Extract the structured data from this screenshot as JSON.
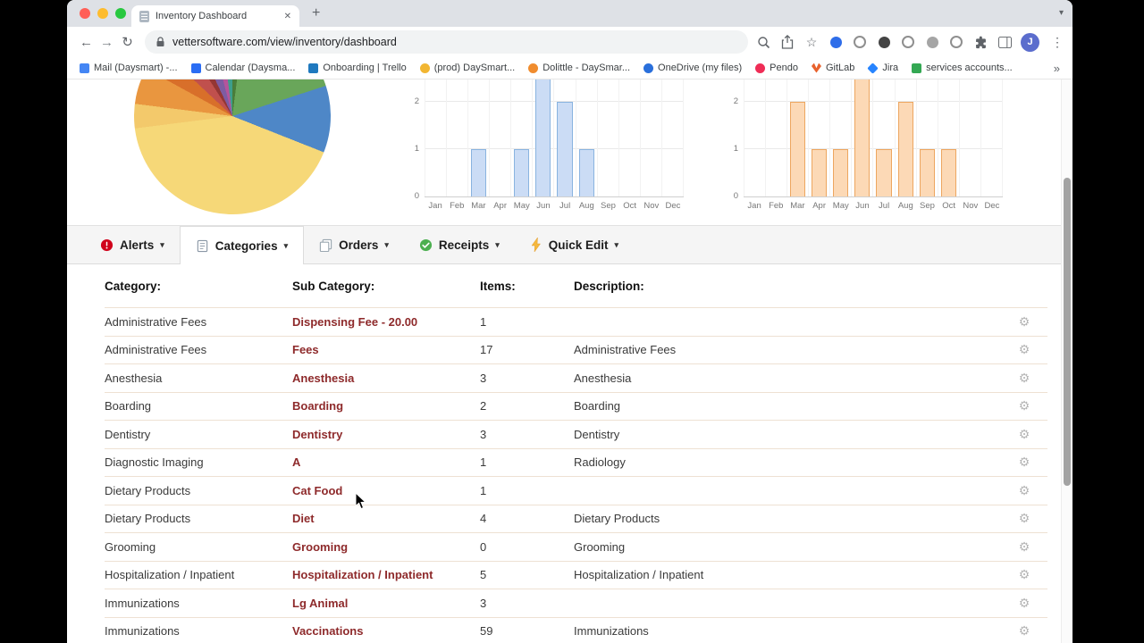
{
  "browser": {
    "tab_title": "Inventory Dashboard",
    "url": "vettersoftware.com/view/inventory/dashboard",
    "profile_initial": "J",
    "bookmarks": [
      {
        "label": "Mail (Daysmart) -...",
        "icon": "mail-icon",
        "color": "#4486f4",
        "shape": "square"
      },
      {
        "label": "Calendar (Daysma...",
        "icon": "calendar-icon",
        "color": "#2a6df4",
        "shape": "square"
      },
      {
        "label": "Onboarding | Trello",
        "icon": "trello-icon",
        "color": "#1f79bf",
        "shape": "square"
      },
      {
        "label": "(prod) DaySmart...",
        "icon": "daysmart-icon",
        "color": "#f2b632",
        "shape": "circle"
      },
      {
        "label": "Dolittle - DaySmar...",
        "icon": "dolittle-icon",
        "color": "#f08c2e",
        "shape": "circle"
      },
      {
        "label": "OneDrive (my files)",
        "icon": "onedrive-icon",
        "color": "#2a6fdb",
        "shape": "circle"
      },
      {
        "label": "Pendo",
        "icon": "pendo-icon",
        "color": "#ef2d56",
        "shape": "circle"
      },
      {
        "label": "GitLab",
        "icon": "gitlab-icon",
        "color": "#e8622d",
        "shape": "triangle"
      },
      {
        "label": "Jira",
        "icon": "jira-icon",
        "color": "#2684ff",
        "shape": "diamond"
      },
      {
        "label": "services accounts...",
        "icon": "sheets-icon",
        "color": "#34a853",
        "shape": "square"
      }
    ],
    "extensions": [
      {
        "icon": "record-dot-icon",
        "style": "filled",
        "color": "#2e6de9"
      },
      {
        "icon": "extension-icon-1",
        "style": "ring",
        "color": "#8f8f8f"
      },
      {
        "icon": "extension-icon-2",
        "style": "filled",
        "color": "#444444"
      },
      {
        "icon": "extension-icon-3",
        "style": "ring",
        "color": "#8f8f8f"
      },
      {
        "icon": "extension-icon-4",
        "style": "filled",
        "color": "#a5a5a5"
      },
      {
        "icon": "extension-icon-5",
        "style": "ring",
        "color": "#8f8f8f"
      }
    ]
  },
  "glyphs": {
    "close": "✕",
    "plus": "+",
    "chevron_down": "▾",
    "back": "←",
    "forward": "→",
    "reload": "↻",
    "star": "☆",
    "kebab": "⋮",
    "overflow": "»",
    "gear": "⚙"
  },
  "nav_tabs": [
    {
      "label": "Alerts",
      "icon": "alert-icon",
      "active": false
    },
    {
      "label": "Categories",
      "icon": "categories-icon",
      "active": true
    },
    {
      "label": "Orders",
      "icon": "orders-icon",
      "active": false
    },
    {
      "label": "Receipts",
      "icon": "receipts-icon",
      "active": false
    },
    {
      "label": "Quick Edit",
      "icon": "quick-edit-icon",
      "active": false
    }
  ],
  "table": {
    "headers": [
      "Category:",
      "Sub Category:",
      "Items:",
      "Description:"
    ],
    "rows": [
      [
        "Administrative Fees",
        "Dispensing Fee - 20.00",
        "1",
        ""
      ],
      [
        "Administrative Fees",
        "Fees",
        "17",
        "Administrative Fees"
      ],
      [
        "Anesthesia",
        "Anesthesia",
        "3",
        "Anesthesia"
      ],
      [
        "Boarding",
        "Boarding",
        "2",
        "Boarding"
      ],
      [
        "Dentistry",
        "Dentistry",
        "3",
        "Dentistry"
      ],
      [
        "Diagnostic Imaging",
        "A",
        "1",
        "Radiology"
      ],
      [
        "Dietary Products",
        "Cat Food",
        "1",
        ""
      ],
      [
        "Dietary Products",
        "Diet",
        "4",
        "Dietary Products"
      ],
      [
        "Grooming",
        "Grooming",
        "0",
        "Grooming"
      ],
      [
        "Hospitalization / Inpatient",
        "Hospitalization / Inpatient",
        "5",
        "Hospitalization / Inpatient"
      ],
      [
        "Immunizations",
        "Lg Animal",
        "3",
        ""
      ],
      [
        "Immunizations",
        "Vaccinations",
        "59",
        "Immunizations"
      ]
    ]
  },
  "chart_data": [
    {
      "type": "pie",
      "title": "",
      "segments": [
        {
          "label": "dark-green",
          "value": 2,
          "color": "#4a7d3a"
        },
        {
          "label": "green",
          "value": 18,
          "color": "#69a65a"
        },
        {
          "label": "blue",
          "value": 11,
          "color": "#4e87c7"
        },
        {
          "label": "yellow",
          "value": 42,
          "color": "#f6d878"
        },
        {
          "label": "light-orange",
          "value": 4,
          "color": "#f3c96b"
        },
        {
          "label": "orange",
          "value": 6,
          "color": "#e9963f"
        },
        {
          "label": "dark-orange",
          "value": 4,
          "color": "#d86f2a"
        },
        {
          "label": "red",
          "value": 4,
          "color": "#c0504d"
        },
        {
          "label": "maroon",
          "value": 2,
          "color": "#943634"
        },
        {
          "label": "purple",
          "value": 3,
          "color": "#7d5ca3"
        },
        {
          "label": "magenta",
          "value": 2,
          "color": "#b5549b"
        },
        {
          "label": "teal",
          "value": 2,
          "color": "#3d9e8c"
        }
      ]
    },
    {
      "type": "bar",
      "title": "",
      "categories": [
        "Jan",
        "Feb",
        "Mar",
        "Apr",
        "May",
        "Jun",
        "Jul",
        "Aug",
        "Sep",
        "Oct",
        "Nov",
        "Dec"
      ],
      "values": [
        0,
        0,
        1,
        0,
        1,
        4,
        2,
        1,
        0,
        0,
        0,
        0
      ],
      "yticks": [
        0,
        1,
        2
      ],
      "ylim": [
        0,
        2.5
      ],
      "fill_color": "#cbdcf5",
      "border_color": "#89b3e0"
    },
    {
      "type": "bar",
      "title": "",
      "categories": [
        "Jan",
        "Feb",
        "Mar",
        "Apr",
        "May",
        "Jun",
        "Jul",
        "Aug",
        "Sep",
        "Oct",
        "Nov",
        "Dec"
      ],
      "values": [
        0,
        0,
        2,
        1,
        1,
        4,
        1,
        2,
        1,
        1,
        0,
        0
      ],
      "yticks": [
        0,
        1,
        2
      ],
      "ylim": [
        0,
        2.5
      ],
      "fill_color": "#fcd9b6",
      "border_color": "#eda65f"
    }
  ]
}
